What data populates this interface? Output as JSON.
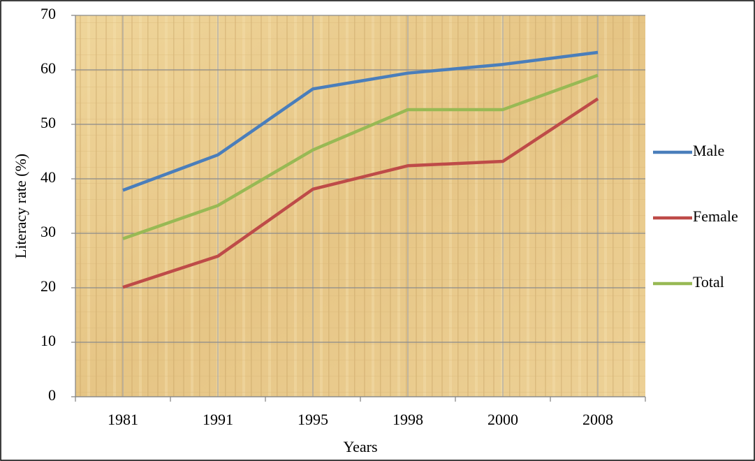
{
  "chart_data": {
    "type": "line",
    "x_label": "Years",
    "y_label": "Literacy rate (%)",
    "categories": [
      "1981",
      "1991",
      "1995",
      "1998",
      "2000",
      "2008"
    ],
    "series": [
      {
        "name": "Male",
        "color": "#4a7ebb",
        "values": [
          37.9,
          44.4,
          56.5,
          59.4,
          61.0,
          63.2
        ]
      },
      {
        "name": "Female",
        "color": "#be4b48",
        "values": [
          20.1,
          25.8,
          38.1,
          42.4,
          43.2,
          54.7
        ]
      },
      {
        "name": "Total",
        "color": "#98b954",
        "values": [
          29.0,
          35.1,
          45.3,
          52.7,
          52.7,
          59.0
        ]
      }
    ],
    "ylim": [
      0,
      70
    ],
    "yticks": [
      0,
      10,
      20,
      30,
      40,
      50,
      60,
      70
    ],
    "grid": true,
    "legend": "right"
  }
}
